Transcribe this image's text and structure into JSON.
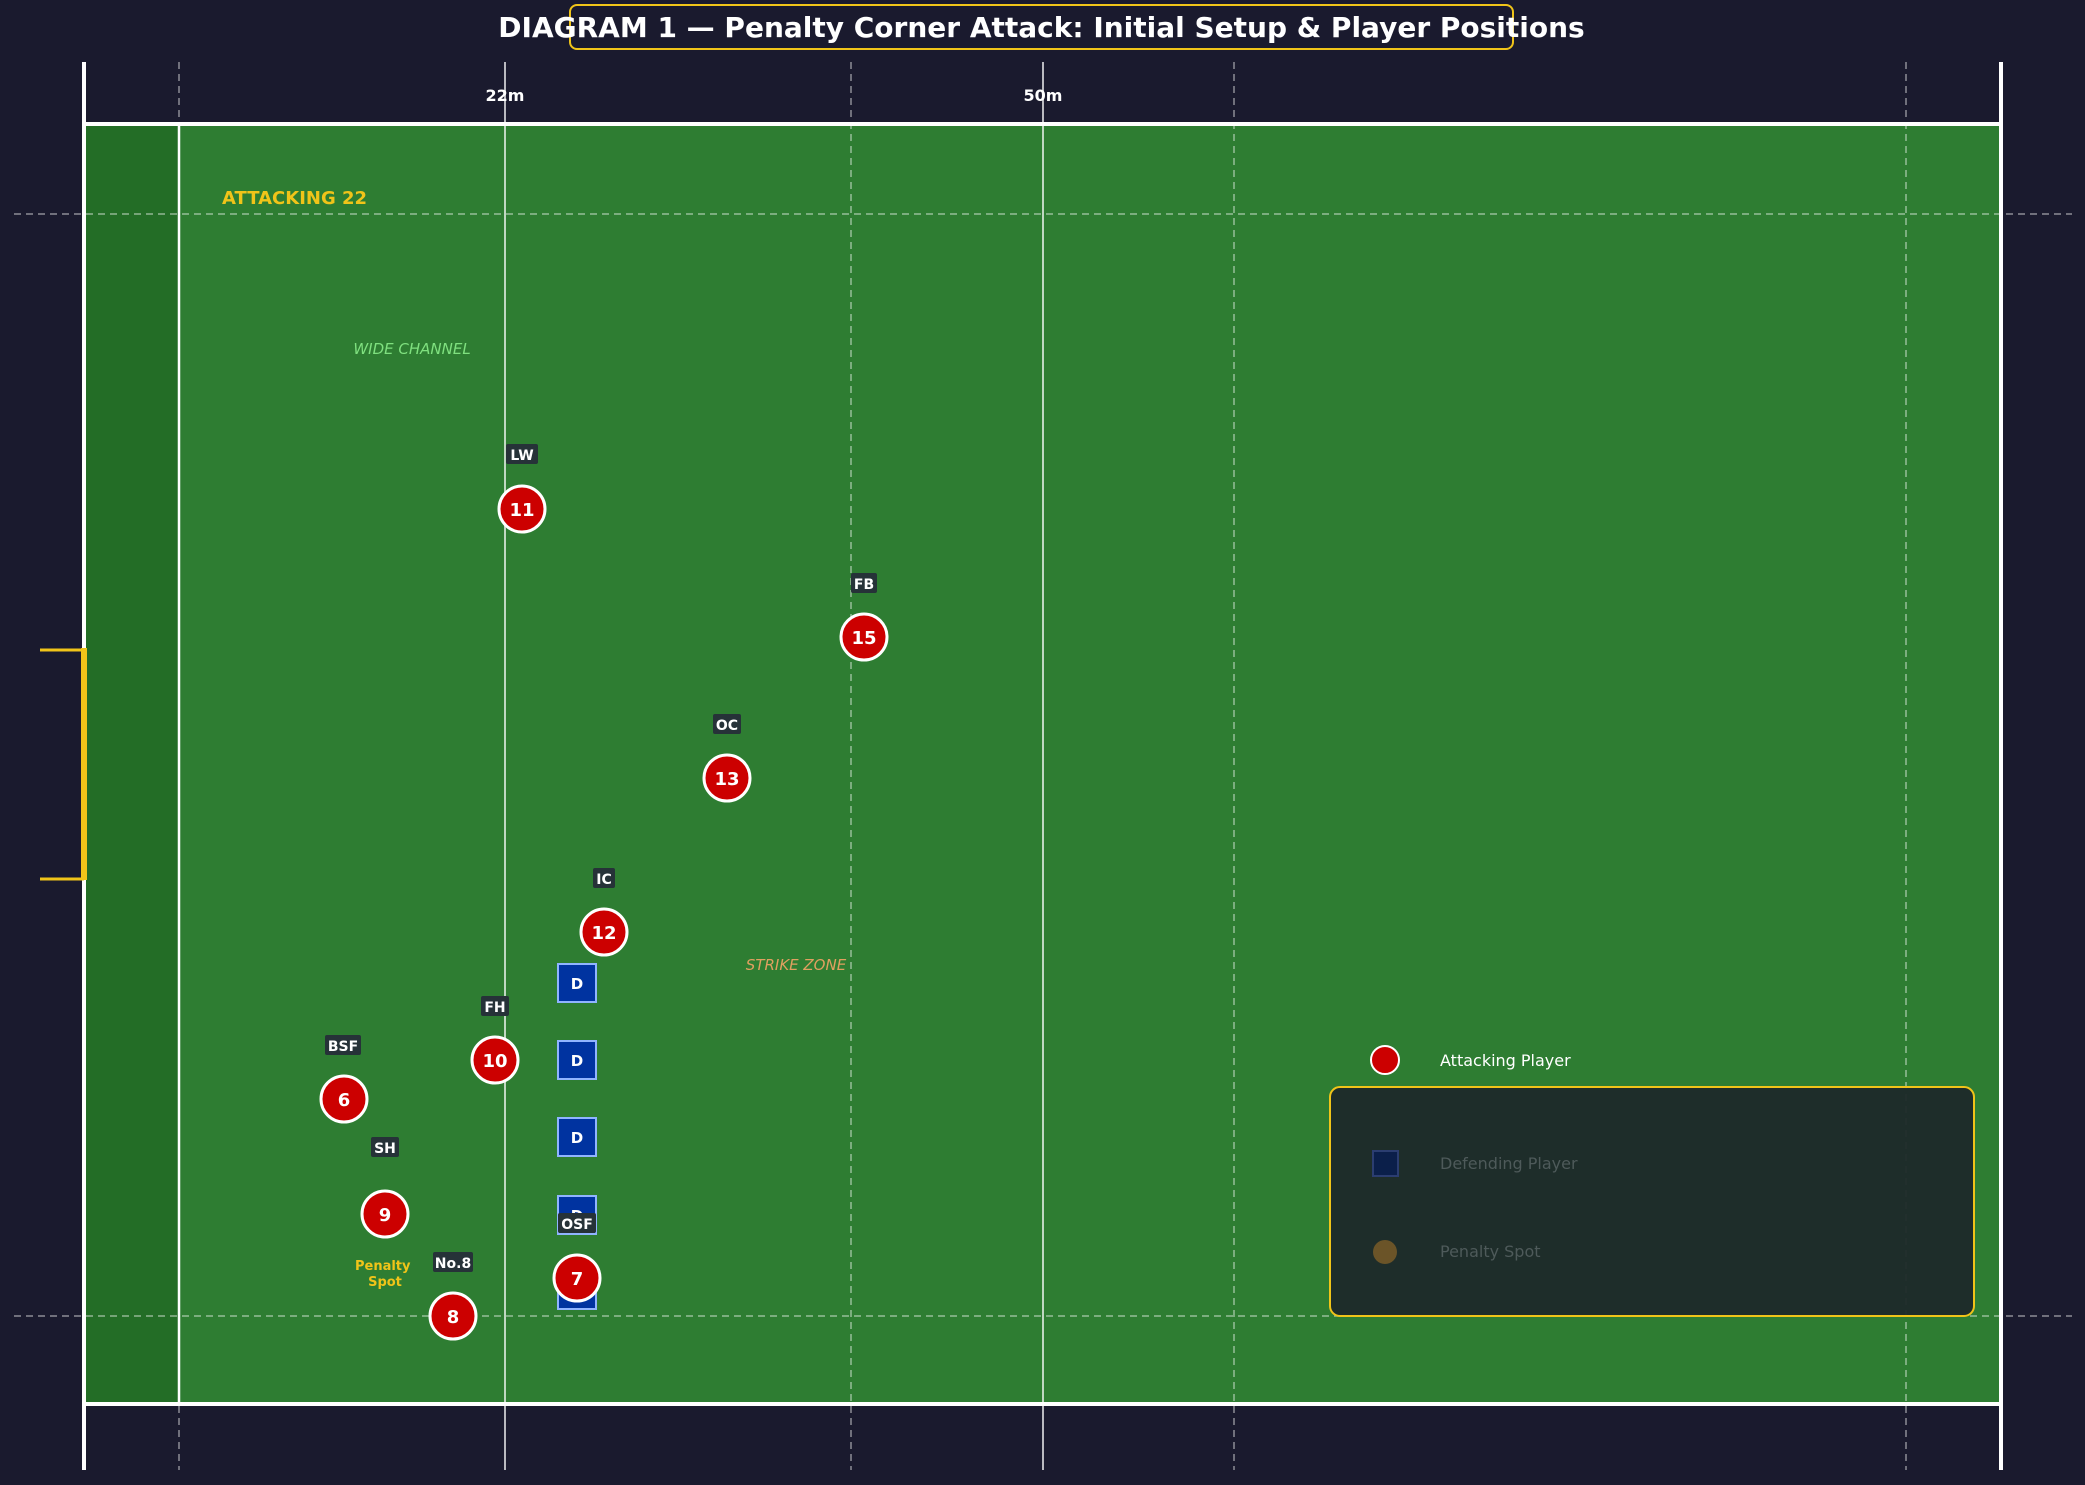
{
  "title": "DIAGRAM 1 — Penalty Corner Attack: Initial Setup & Player Positions",
  "colors": {
    "background": "#1a1a2e",
    "pitch": "#2e7d32",
    "in_goal": "#236d26",
    "line": "#ffffff",
    "accent": "#f0c419",
    "attacker": "#cc0000",
    "defender": "#0033a0",
    "defender_border": "#90b4ff",
    "wide_channel_text": "#7fe07f",
    "strike_zone_text": "#e0a060"
  },
  "distance_labels": {
    "m22": "22m",
    "m50": "50m"
  },
  "zones": {
    "attacking22": "ATTACKING 22",
    "wide_channel": "WIDE CHANNEL",
    "strike_zone": "STRIKE ZONE"
  },
  "attackers": [
    {
      "number": "11",
      "role": "LW"
    },
    {
      "number": "15",
      "role": "FB"
    },
    {
      "number": "13",
      "role": "OC"
    },
    {
      "number": "12",
      "role": "IC"
    },
    {
      "number": "10",
      "role": "FH"
    },
    {
      "number": "6",
      "role": "BSF"
    },
    {
      "number": "9",
      "role": "SH"
    },
    {
      "number": "8",
      "role": "No.8"
    },
    {
      "number": "7",
      "role": "OSF"
    }
  ],
  "defenders": [
    "D",
    "D",
    "D",
    "D",
    "D"
  ],
  "penalty_spot_label": "Penalty\nSpot",
  "legend": {
    "attacking": "Attacking Player",
    "defending": "Defending Player",
    "penalty_spot": "Penalty Spot"
  }
}
